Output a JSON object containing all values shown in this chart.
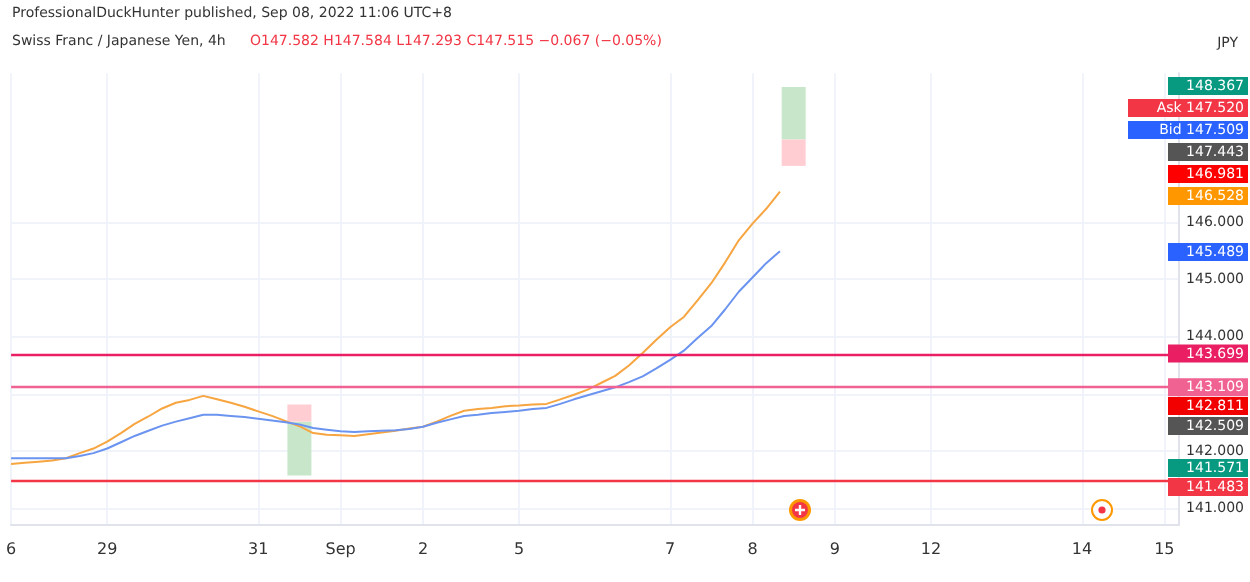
{
  "chart_data": {
    "type": "line",
    "title": "Swiss Franc / Japanese Yen, 4h",
    "subtitle": "ProfessionalDuckHunter published, Sep 08, 2022 11:06 UTC+8",
    "ylabel": "JPY",
    "annotations": [
      "O147.582 H147.584 L147.293 C147.515 −0.067 (−0.05%)",
      "148.367",
      "Ask 147.520",
      "Bid 147.509",
      "147.443",
      "146.981",
      "146.528",
      "145.489",
      "142.811",
      "142.509",
      "141.571"
    ],
    "categories": [
      "6",
      null,
      null,
      null,
      null,
      null,
      null,
      "29",
      null,
      null,
      null,
      null,
      null,
      null,
      null,
      null,
      null,
      null,
      "31",
      null,
      null,
      null,
      null,
      null,
      "Sep",
      null,
      null,
      null,
      null,
      null,
      "2",
      null,
      null,
      null,
      null,
      null,
      null,
      "5",
      null,
      null,
      null,
      null,
      null,
      null,
      null,
      null,
      null,
      null,
      "7",
      null,
      null,
      null,
      null,
      null,
      "8",
      null,
      null,
      null,
      null,
      null,
      "9",
      null,
      null,
      null,
      null,
      null,
      null,
      "12",
      null,
      null,
      null,
      null,
      null,
      null,
      null,
      null,
      null,
      null,
      "14",
      null,
      null,
      null,
      null,
      null,
      "15",
      null
    ],
    "ylim": [
      140.7,
      148.6
    ],
    "yticks": [
      {
        "value": 141,
        "label": "141.000"
      },
      {
        "value": 142,
        "label": "142.000"
      },
      {
        "value": 143,
        "label": null
      },
      {
        "value": 144,
        "label": "144.000"
      },
      {
        "value": 145,
        "label": "145.000"
      },
      {
        "value": 146,
        "label": "146.000"
      }
    ],
    "grid": true,
    "marker": "none",
    "line_style": "solid",
    "series": [
      {
        "color": "#f7a541",
        "values": [
          141.77,
          141.79,
          141.81,
          141.83,
          141.87,
          141.96,
          142.04,
          142.16,
          142.31,
          142.47,
          142.6,
          142.74,
          142.84,
          142.89,
          142.96,
          142.9,
          142.84,
          142.77,
          142.69,
          142.61,
          142.52,
          142.43,
          142.31,
          142.28,
          142.27,
          142.26,
          142.29,
          142.32,
          142.35,
          142.39,
          142.42,
          142.51,
          142.61,
          142.7,
          142.73,
          142.75,
          142.78,
          142.79,
          142.81,
          142.82,
          142.9,
          142.98,
          143.07,
          143.19,
          143.31,
          143.49,
          143.71,
          143.94,
          144.16,
          144.34,
          144.63,
          144.93,
          145.29,
          145.68,
          145.97,
          146.23,
          146.53,
          null,
          null,
          null,
          null,
          null,
          null,
          null,
          null,
          null,
          null,
          null,
          null,
          null,
          null,
          null,
          null,
          null,
          null,
          null,
          null,
          null,
          null,
          null,
          null,
          null,
          null,
          null,
          null,
          null
        ]
      },
      {
        "color": "#6b93f0",
        "values": [
          141.87,
          141.87,
          141.87,
          141.87,
          141.87,
          141.91,
          141.96,
          142.04,
          142.15,
          142.26,
          142.35,
          142.44,
          142.51,
          142.57,
          142.63,
          142.63,
          142.61,
          142.59,
          142.56,
          142.53,
          142.5,
          142.46,
          142.4,
          142.37,
          142.34,
          142.33,
          142.34,
          142.35,
          142.36,
          142.38,
          142.42,
          142.49,
          142.55,
          142.61,
          142.63,
          142.66,
          142.68,
          142.7,
          142.73,
          142.75,
          142.82,
          142.9,
          142.97,
          143.04,
          143.11,
          143.2,
          143.3,
          143.44,
          143.59,
          143.75,
          143.97,
          144.18,
          144.47,
          144.78,
          145.03,
          145.28,
          145.49,
          null,
          null,
          null,
          null,
          null,
          null,
          null,
          null,
          null,
          null,
          null,
          null,
          null,
          null,
          null,
          null,
          null,
          null,
          null,
          null,
          null,
          null,
          null,
          null,
          null,
          null,
          null,
          null,
          null
        ]
      },
      {
        "type": "bar",
        "color": "#c8e6c9",
        "base": [
          null,
          null,
          null,
          null,
          null,
          null,
          null,
          null,
          null,
          null,
          null,
          null,
          null,
          null,
          null,
          null,
          null,
          null,
          null,
          null,
          null,
          141.57,
          null,
          null,
          null,
          null,
          null,
          null,
          null,
          null,
          null,
          null,
          null,
          null,
          null,
          null,
          null,
          null,
          null,
          null,
          null,
          null,
          null,
          null,
          null,
          null,
          null,
          null,
          null,
          null,
          null,
          null,
          null,
          null,
          null,
          null,
          null,
          147.44,
          null,
          null,
          null,
          null,
          null,
          null,
          null,
          null,
          null,
          null,
          null,
          null,
          null,
          null,
          null,
          null,
          null,
          null,
          null,
          null,
          null,
          null,
          null,
          null,
          null,
          null,
          null,
          null
        ],
        "values": [
          null,
          null,
          null,
          null,
          null,
          null,
          null,
          null,
          null,
          null,
          null,
          null,
          null,
          null,
          null,
          null,
          null,
          null,
          null,
          null,
          null,
          0.94,
          null,
          null,
          null,
          null,
          null,
          null,
          null,
          null,
          null,
          null,
          null,
          null,
          null,
          null,
          null,
          null,
          null,
          null,
          null,
          null,
          null,
          null,
          null,
          null,
          null,
          null,
          null,
          null,
          null,
          null,
          null,
          null,
          null,
          null,
          null,
          0.92,
          null,
          null,
          null,
          null,
          null,
          null,
          null,
          null,
          null,
          null,
          null,
          null,
          null,
          null,
          null,
          null,
          null,
          null,
          null,
          null,
          null,
          null,
          null,
          null,
          null,
          null,
          null,
          null
        ]
      },
      {
        "type": "bar",
        "color": "#ffcdd2",
        "base": [
          null,
          null,
          null,
          null,
          null,
          null,
          null,
          null,
          null,
          null,
          null,
          null,
          null,
          null,
          null,
          null,
          null,
          null,
          null,
          null,
          null,
          142.51,
          null,
          null,
          null,
          null,
          null,
          null,
          null,
          null,
          null,
          null,
          null,
          null,
          null,
          null,
          null,
          null,
          null,
          null,
          null,
          null,
          null,
          null,
          null,
          null,
          null,
          null,
          null,
          null,
          null,
          null,
          null,
          null,
          null,
          null,
          null,
          146.98,
          null,
          null,
          null,
          null,
          null,
          null,
          null,
          null,
          null,
          null,
          null,
          null,
          null,
          null,
          null,
          null,
          null,
          null,
          null,
          null,
          null,
          null,
          null,
          null,
          null,
          null,
          null,
          null
        ],
        "values": [
          null,
          null,
          null,
          null,
          null,
          null,
          null,
          null,
          null,
          null,
          null,
          null,
          null,
          null,
          null,
          null,
          null,
          null,
          null,
          null,
          null,
          0.3,
          null,
          null,
          null,
          null,
          null,
          null,
          null,
          null,
          null,
          null,
          null,
          null,
          null,
          null,
          null,
          null,
          null,
          null,
          null,
          null,
          null,
          null,
          null,
          null,
          null,
          null,
          null,
          null,
          null,
          null,
          null,
          null,
          null,
          null,
          null,
          0.46,
          null,
          null,
          null,
          null,
          null,
          null,
          null,
          null,
          null,
          null,
          null,
          null,
          null,
          null,
          null,
          null,
          null,
          null,
          null,
          null,
          null,
          null,
          null,
          null,
          null,
          null,
          null,
          null
        ]
      }
    ],
    "ref_lines": [
      {
        "axis": "y",
        "value": 143.699,
        "label": "143.699",
        "color": "#e91e63",
        "line_style": "solid"
      },
      {
        "axis": "y",
        "value": 143.109,
        "label": "143.109",
        "color": "#f06292",
        "line_style": "solid"
      },
      {
        "axis": "y",
        "value": 141.483,
        "label": "141.483",
        "color": "#f23645",
        "line_style": "solid"
      }
    ]
  }
}
